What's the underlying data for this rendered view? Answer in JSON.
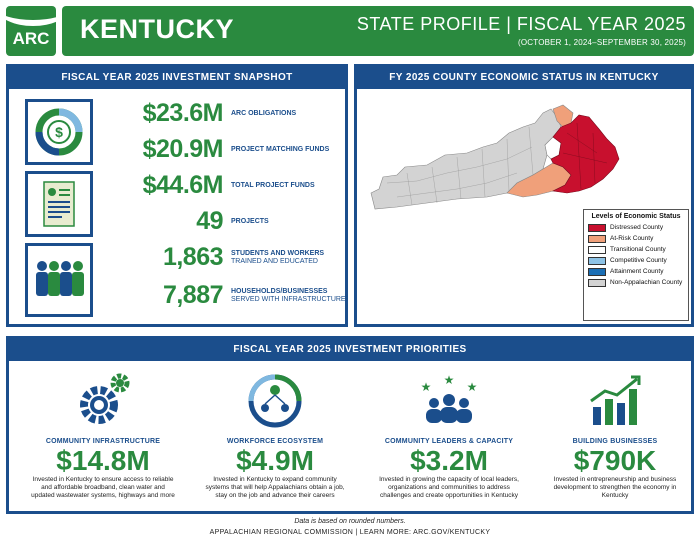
{
  "header": {
    "logo_text": "ARC",
    "state": "KENTUCKY",
    "profile": "STATE PROFILE  |  FISCAL YEAR 2025",
    "dates": "(OCTOBER 1, 2024–SEPTEMBER 30, 2025)"
  },
  "snapshot": {
    "title": "FISCAL YEAR 2025 INVESTMENT SNAPSHOT",
    "stats": [
      {
        "value": "$23.6M",
        "label": "ARC OBLIGATIONS",
        "sub": ""
      },
      {
        "value": "$20.9M",
        "label": "PROJECT MATCHING FUNDS",
        "sub": ""
      },
      {
        "value": "$44.6M",
        "label": "TOTAL PROJECT FUNDS",
        "sub": ""
      },
      {
        "value": "49",
        "label": "PROJECTS",
        "sub": ""
      },
      {
        "value": "1,863",
        "label": "STUDENTS AND WORKERS",
        "sub": "TRAINED AND EDUCATED"
      },
      {
        "value": "7,887",
        "label": "HOUSEHOLDS/BUSINESSES",
        "sub": "SERVED WITH INFRASTRUCTURE"
      }
    ],
    "icons": [
      "dollar-chart-icon",
      "document-icon",
      "people-icon"
    ]
  },
  "county": {
    "title": "FY 2025 COUNTY ECONOMIC STATUS IN KENTUCKY",
    "legend_title": "Levels of Economic Status",
    "legend": [
      {
        "label": "Distressed County",
        "color": "#c8102e"
      },
      {
        "label": "At-Risk County",
        "color": "#f0a07a"
      },
      {
        "label": "Transitional County",
        "color": "#ffffff"
      },
      {
        "label": "Competitive County",
        "color": "#8ec3e6"
      },
      {
        "label": "Attainment County",
        "color": "#1b6fb5"
      },
      {
        "label": "Non-Appalachian County",
        "color": "#d3d3d3"
      }
    ]
  },
  "priorities": {
    "title": "FISCAL YEAR 2025 INVESTMENT PRIORITIES",
    "items": [
      {
        "title": "COMMUNITY INFRASTRUCTURE",
        "amount": "$14.8M",
        "desc": "Invested in Kentucky to ensure access to reliable and affordable broadband, clean water and updated wastewater systems, highways and more"
      },
      {
        "title": "WORKFORCE ECOSYSTEM",
        "amount": "$4.9M",
        "desc": "Invested in Kentucky to expand community systems that will help Appalachians obtain a job, stay on the job and advance their careers"
      },
      {
        "title": "COMMUNITY LEADERS & CAPACITY",
        "amount": "$3.2M",
        "desc": "Invested in growing the capacity of local leaders, organizations and communities to address challenges and create opportunities in Kentucky"
      },
      {
        "title": "BUILDING BUSINESSES",
        "amount": "$790K",
        "desc": "Invested in entrepreneurship and business development to strengthen the economy in Kentucky"
      }
    ]
  },
  "footer": {
    "note": "Data is based on rounded numbers.",
    "line": "APPALACHIAN REGIONAL COMMISSION      |      LEARN MORE: ARC.GOV/KENTUCKY"
  },
  "colors": {
    "brand_green": "#2a8a3f",
    "brand_blue": "#1b4e8c",
    "distressed": "#c8102e"
  }
}
